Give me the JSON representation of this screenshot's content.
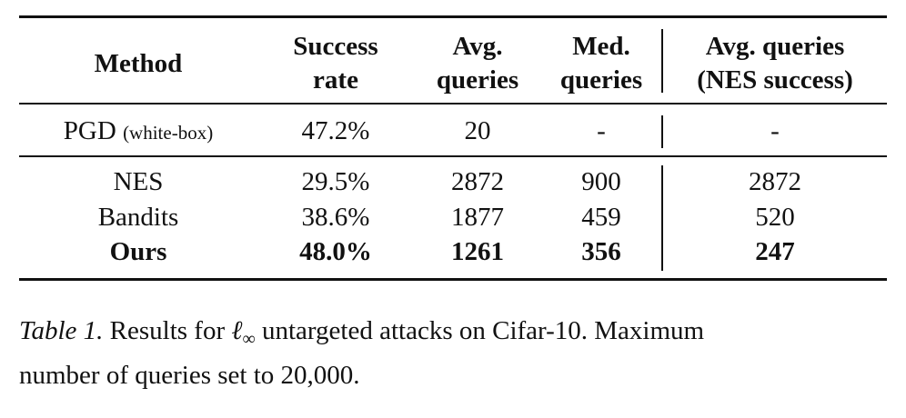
{
  "table": {
    "headers": [
      [
        "Method"
      ],
      [
        "Success",
        "rate"
      ],
      [
        "Avg.",
        "queries"
      ],
      [
        "Med.",
        "queries"
      ],
      [
        "Avg. queries",
        "(NES success)"
      ]
    ],
    "rows": [
      {
        "method": "PGD",
        "method_note": "(white-box)",
        "success": "47.2%",
        "avg": "20",
        "med": "-",
        "avg_nes": "-",
        "bold": false
      },
      {
        "method": "NES",
        "method_note": "",
        "success": "29.5%",
        "avg": "2872",
        "med": "900",
        "avg_nes": "2872",
        "bold": false
      },
      {
        "method": "Bandits",
        "method_note": "",
        "success": "38.6%",
        "avg": "1877",
        "med": "459",
        "avg_nes": "520",
        "bold": false
      },
      {
        "method": "Ours",
        "method_note": "",
        "success": "48.0%",
        "avg": "1261",
        "med": "356",
        "avg_nes": "247",
        "bold": true
      }
    ]
  },
  "caption": {
    "label": "Table 1.",
    "text_before": " Results for ",
    "symbol": "ℓ",
    "subscript": "∞",
    "text_after": " untargeted attacks on Cifar-10. Maximum",
    "line2": "number of queries set to 20,000."
  }
}
